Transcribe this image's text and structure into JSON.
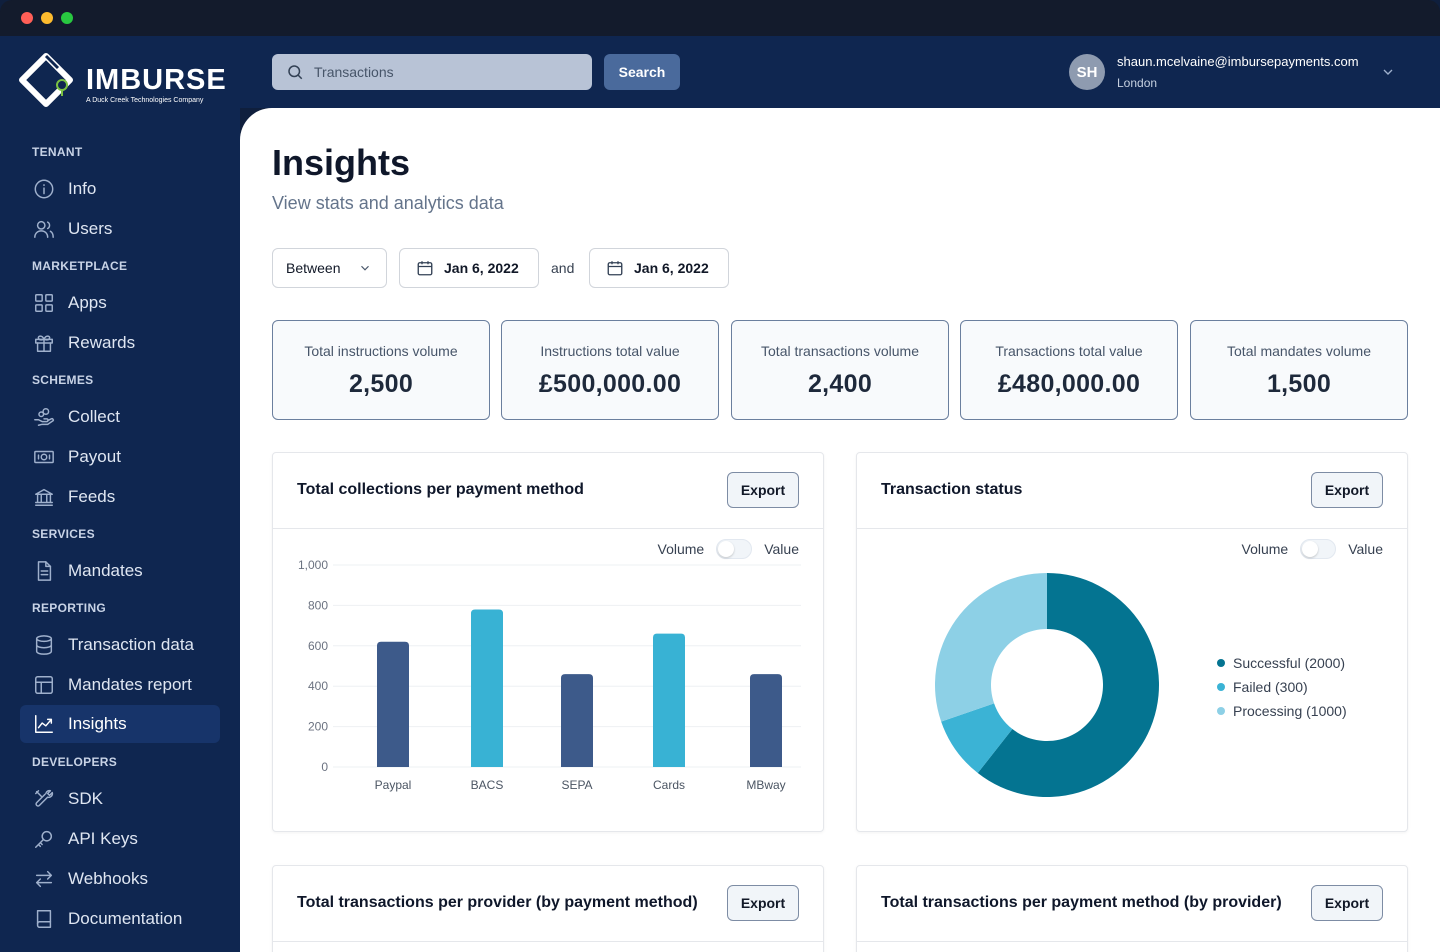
{
  "brand": {
    "name": "IMBURSE",
    "tagline": "A Duck Creek Technologies Company"
  },
  "sidebar": {
    "sections": [
      {
        "title": "TENANT",
        "items": [
          {
            "label": "Info",
            "icon": "info-icon"
          },
          {
            "label": "Users",
            "icon": "users-icon"
          }
        ]
      },
      {
        "title": "MARKETPLACE",
        "items": [
          {
            "label": "Apps",
            "icon": "grid-icon"
          },
          {
            "label": "Rewards",
            "icon": "gift-icon"
          }
        ]
      },
      {
        "title": "SCHEMES",
        "items": [
          {
            "label": "Collect",
            "icon": "hand-coins-icon"
          },
          {
            "label": "Payout",
            "icon": "banknote-icon"
          },
          {
            "label": "Feeds",
            "icon": "bank-icon"
          }
        ]
      },
      {
        "title": "SERVICES",
        "items": [
          {
            "label": "Mandates",
            "icon": "document-icon"
          }
        ]
      },
      {
        "title": "REPORTING",
        "items": [
          {
            "label": "Transaction data",
            "icon": "database-icon"
          },
          {
            "label": "Mandates report",
            "icon": "table-icon"
          },
          {
            "label": "Insights",
            "icon": "chart-line-icon",
            "active": true
          }
        ]
      },
      {
        "title": "DEVELOPERS",
        "items": [
          {
            "label": "SDK",
            "icon": "tools-icon"
          },
          {
            "label": "API Keys",
            "icon": "key-icon"
          },
          {
            "label": "Webhooks",
            "icon": "arrows-icon"
          },
          {
            "label": "Documentation",
            "icon": "book-icon"
          }
        ]
      }
    ]
  },
  "topbar": {
    "search_placeholder": "Transactions",
    "search_button": "Search",
    "user_initials": "SH",
    "user_email": "shaun.mcelvaine@imbursepayments.com",
    "user_location": "London"
  },
  "page": {
    "title": "Insights",
    "subtitle": "View stats and analytics data"
  },
  "filters": {
    "mode": "Between",
    "start_date": "Jan 6, 2022",
    "joiner": "and",
    "end_date": "Jan 6, 2022"
  },
  "stats": [
    {
      "label": "Total instructions volume",
      "value": "2,500"
    },
    {
      "label": "Instructions total value",
      "value": "£500,000.00"
    },
    {
      "label": "Total transactions volume",
      "value": "2,400"
    },
    {
      "label": "Transactions total value",
      "value": "£480,000.00"
    },
    {
      "label": "Total mandates volume",
      "value": "1,500"
    }
  ],
  "panels": {
    "collections": {
      "title": "Total collections per payment method",
      "export": "Export",
      "toggle_left": "Volume",
      "toggle_right": "Value"
    },
    "status": {
      "title": "Transaction status",
      "export": "Export",
      "toggle_left": "Volume",
      "toggle_right": "Value"
    },
    "provider": {
      "title": "Total transactions per provider (by payment method)",
      "export": "Export"
    },
    "method": {
      "title": "Total transactions per payment method (by provider)",
      "export": "Export"
    }
  },
  "colors": {
    "bar_dark": "#3d5a8a",
    "bar_light": "#38b2d4",
    "donut_successful": "#047491",
    "donut_failed": "#3bb3d5",
    "donut_processing": "#8dd0e6"
  },
  "chart_data": [
    {
      "type": "bar",
      "categories": [
        "Paypal",
        "BACS",
        "SEPA",
        "Cards",
        "MBway"
      ],
      "values": [
        620,
        780,
        460,
        660,
        460
      ],
      "ylim": [
        0,
        1000
      ],
      "yticks": [
        "0",
        "200",
        "400",
        "600",
        "800",
        "1,000"
      ],
      "grid": true
    },
    {
      "type": "pie",
      "donut": true,
      "labels": [
        "Successful (2000)",
        "Failed (300)",
        "Processing (1000)"
      ],
      "values": [
        2000,
        300,
        1000
      ],
      "legend": "right"
    }
  ]
}
